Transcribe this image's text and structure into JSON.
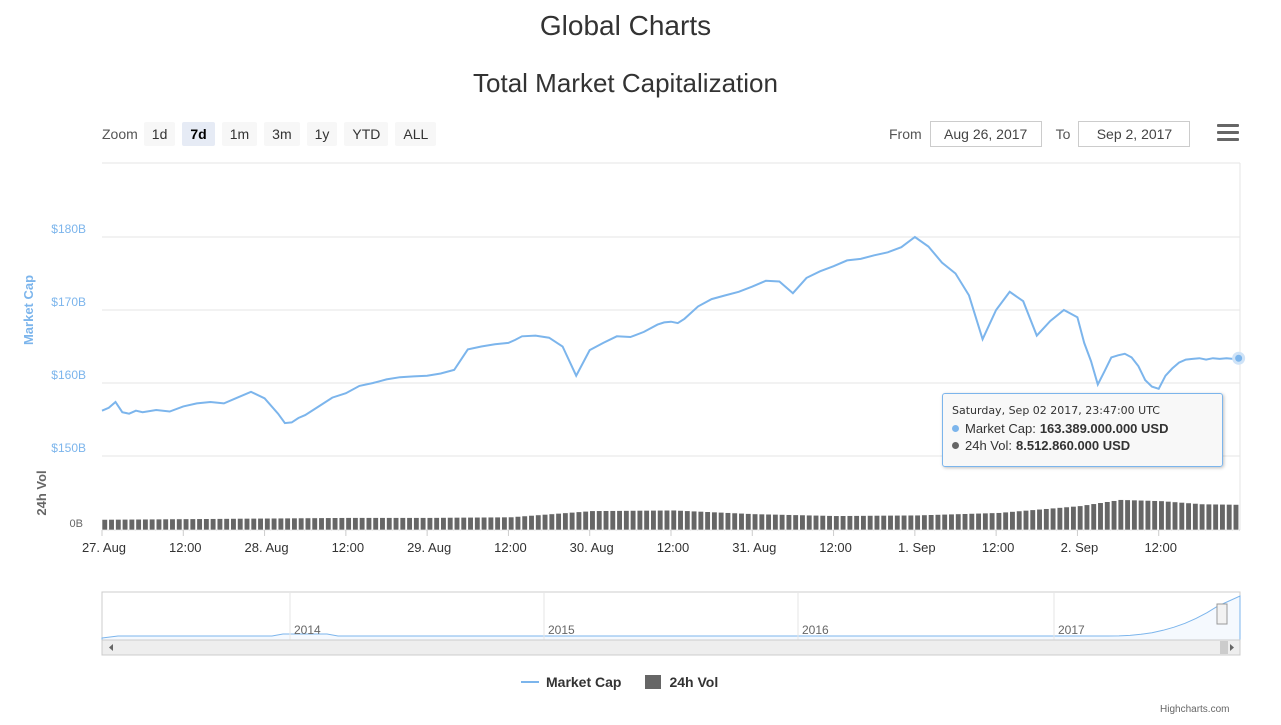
{
  "page": {
    "title": "Global Charts",
    "credits": "Highcharts.com"
  },
  "toolbar": {
    "zoom_label": "Zoom",
    "zoom_buttons": [
      "1d",
      "7d",
      "1m",
      "3m",
      "1y",
      "YTD",
      "ALL"
    ],
    "active_zoom": "7d",
    "from_label": "From",
    "from_value": "Aug 26, 2017",
    "to_label": "To",
    "to_value": "Sep 2, 2017",
    "menu_icon": "hamburger-icon"
  },
  "tooltip": {
    "header": "Saturday, Sep 02 2017, 23:47:00 UTC",
    "market_cap_label": "Market Cap:",
    "market_cap_value": "163.389.000.000 USD",
    "vol_label": "24h Vol:",
    "vol_value": "8.512.860.000 USD"
  },
  "legend": {
    "market_cap": "Market Cap",
    "vol": "24h Vol"
  },
  "colors": {
    "market_cap": "#7cb5ec",
    "vol": "#666666",
    "grid": "#e6e6e6",
    "axis_label": "#7cb5ec"
  },
  "chart_data": {
    "type": "line",
    "title": "Total Market Capitalization",
    "ylabel": "Market Cap",
    "ylabel2": "24h Vol",
    "ylim": [
      145,
      190
    ],
    "y_ticks": [
      150,
      160,
      170,
      180
    ],
    "y_tick_labels": [
      "$150B",
      "$160B",
      "$170B",
      "$180B"
    ],
    "vol_tick_label": "0B",
    "x_tick_labels": [
      "27. Aug",
      "12:00",
      "28. Aug",
      "12:00",
      "29. Aug",
      "12:00",
      "30. Aug",
      "12:00",
      "31. Aug",
      "12:00",
      "1. Sep",
      "12:00",
      "2. Sep",
      "12:00"
    ],
    "x_hours": [
      0,
      12,
      24,
      36,
      48,
      60,
      72,
      84,
      96,
      108,
      120,
      132,
      144,
      156
    ],
    "x_range_hours": [
      0,
      168
    ],
    "series": [
      {
        "name": "Market Cap",
        "x": [
          0,
          1,
          2,
          3,
          4,
          5,
          6,
          8,
          10,
          12,
          14,
          16,
          18,
          20,
          22,
          24,
          26,
          27,
          28,
          29,
          30,
          32,
          34,
          36,
          38,
          40,
          42,
          44,
          46,
          48,
          50,
          52,
          54,
          56,
          58,
          60,
          61,
          62,
          64,
          66,
          68,
          70,
          72,
          74,
          76,
          78,
          80,
          82,
          83,
          84,
          85,
          86,
          88,
          90,
          92,
          94,
          96,
          98,
          100,
          102,
          104,
          106,
          108,
          110,
          112,
          114,
          116,
          118,
          120,
          122,
          124,
          126,
          128,
          130,
          132,
          134,
          136,
          138,
          140,
          142,
          144,
          145,
          146,
          147,
          148,
          149,
          150,
          151,
          152,
          153,
          154,
          155,
          156,
          157,
          158,
          159,
          160,
          161,
          162,
          163,
          164,
          165,
          166,
          167,
          167.8
        ],
        "values": [
          156.2,
          156.6,
          157.4,
          156.0,
          155.8,
          156.2,
          156.0,
          156.3,
          156.1,
          156.8,
          157.2,
          157.4,
          157.2,
          158.0,
          158.8,
          157.9,
          155.8,
          154.5,
          154.6,
          155.2,
          155.6,
          156.8,
          158.0,
          158.6,
          159.6,
          160.0,
          160.5,
          160.8,
          160.9,
          161.0,
          161.3,
          161.8,
          164.6,
          165.0,
          165.3,
          165.5,
          165.9,
          166.4,
          166.5,
          166.2,
          165.0,
          161.0,
          164.5,
          165.5,
          166.4,
          166.3,
          167.0,
          168.0,
          168.3,
          168.4,
          168.2,
          168.8,
          170.5,
          171.5,
          172.0,
          172.5,
          173.2,
          174.0,
          173.9,
          172.3,
          174.4,
          175.3,
          176.0,
          176.8,
          177.0,
          177.5,
          177.9,
          178.6,
          180.0,
          178.7,
          176.5,
          175.0,
          172.0,
          166.0,
          170.0,
          172.5,
          171.2,
          166.5,
          168.5,
          170.0,
          169.0,
          165.5,
          163.0,
          159.8,
          161.6,
          163.5,
          163.8,
          164.0,
          163.5,
          162.3,
          160.4,
          159.5,
          159.2,
          161.0,
          162.0,
          162.8,
          163.2,
          163.3,
          163.4,
          163.2,
          163.4,
          163.3,
          163.4,
          163.3,
          163.389
        ]
      },
      {
        "name": "24h Vol",
        "x": [
          0,
          12,
          24,
          36,
          48,
          60,
          72,
          84,
          96,
          108,
          120,
          132,
          144,
          150,
          156,
          162,
          168
        ],
        "values": [
          1.7,
          1.8,
          1.9,
          2.0,
          2.0,
          2.1,
          3.1,
          3.2,
          2.6,
          2.3,
          2.4,
          2.8,
          3.9,
          4.9,
          4.7,
          4.2,
          4.1
        ]
      }
    ]
  },
  "navigator": {
    "year_labels": [
      "2014",
      "2015",
      "2016",
      "2017"
    ],
    "scroll_left_icon": "triangle-left-icon",
    "scroll_right_icon": "triangle-right-icon"
  }
}
